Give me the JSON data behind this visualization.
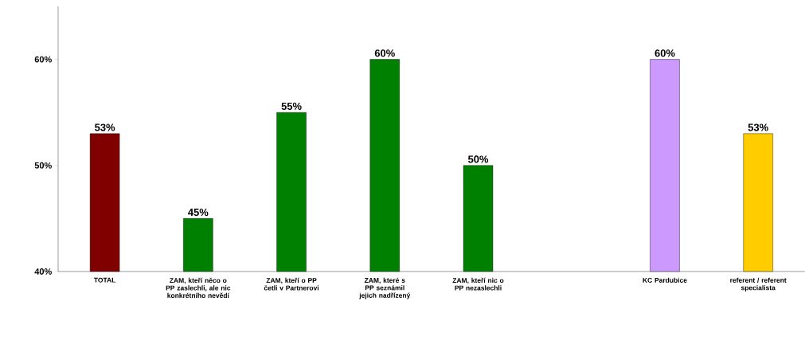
{
  "chart_data": {
    "type": "bar",
    "categories": [
      "TOTAL",
      "ZAM, kteří něco o PP zaslechli, ale nic konkrétního nevědí",
      "ZAM, kteří o PP četli v Partnerovi",
      "ZAM, které s PP seznámil jejich nadřízený",
      "ZAM, kteří nic o PP nezaslechli",
      null,
      "KC Pardubice",
      "referent / referent specialista"
    ],
    "values": [
      53,
      45,
      55,
      60,
      50,
      null,
      60,
      53
    ],
    "colors": [
      "#800000",
      "#008000",
      "#008000",
      "#008000",
      "#008000",
      null,
      "#cc99ff",
      "#ffcc00"
    ],
    "value_labels": [
      "53%",
      "45%",
      "55%",
      "60%",
      "50%",
      null,
      "60%",
      "53%"
    ],
    "ylim": [
      40,
      65
    ],
    "yticks": [
      {
        "value": 40,
        "label": "40%"
      },
      {
        "value": 50,
        "label": "50%"
      },
      {
        "value": 60,
        "label": "60%"
      }
    ]
  }
}
